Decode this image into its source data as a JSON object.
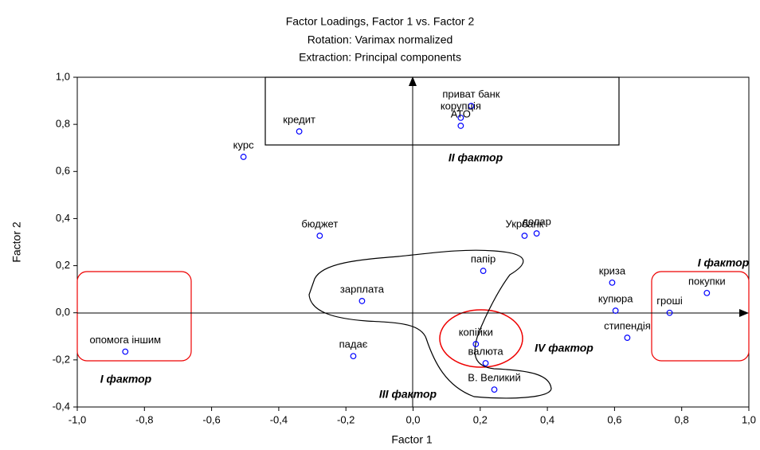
{
  "chart_data": {
    "type": "scatter",
    "title": "Factor Loadings, Factor 1 vs. Factor 2",
    "subtitle": [
      "Rotation: Varimax normalized",
      "Extraction: Principal components"
    ],
    "x_label": "Factor 1",
    "y_label": "Factor 2",
    "color": "#0000ff",
    "xlim": [
      -1,
      1
    ],
    "ylim": [
      -0.4,
      1
    ],
    "xticks": [
      {
        "value": -1,
        "label": "-1,0"
      },
      {
        "value": -0.8,
        "label": "-0,8"
      },
      {
        "value": -0.6,
        "label": "-0,6"
      },
      {
        "value": -0.4,
        "label": "-0,4"
      },
      {
        "value": -0.2,
        "label": "-0,2"
      },
      {
        "value": 0,
        "label": "0,0"
      },
      {
        "value": 0.2,
        "label": "0,2"
      },
      {
        "value": 0.4,
        "label": "0,4"
      },
      {
        "value": 0.6,
        "label": "0,6"
      },
      {
        "value": 0.8,
        "label": "0,8"
      },
      {
        "value": 1,
        "label": "1,0"
      }
    ],
    "yticks": [
      {
        "value": -0.4,
        "label": "-0,4"
      },
      {
        "value": -0.2,
        "label": "-0,2"
      },
      {
        "value": 0,
        "label": "0,0"
      },
      {
        "value": 0.2,
        "label": "0,2"
      },
      {
        "value": 0.4,
        "label": "0,4"
      },
      {
        "value": 0.6,
        "label": "0,6"
      },
      {
        "value": 0.8,
        "label": "0,8"
      },
      {
        "value": 1,
        "label": "1,0"
      }
    ],
    "points": [
      {
        "label": "приват банк",
        "x": 0.173,
        "y": 0.878
      },
      {
        "label": "корупція",
        "x": 0.142,
        "y": 0.828
      },
      {
        "label": "АТО",
        "x": 0.142,
        "y": 0.794
      },
      {
        "label": "кредит",
        "x": -0.339,
        "y": 0.77
      },
      {
        "label": "курс",
        "x": -0.505,
        "y": 0.662
      },
      {
        "label": "бюджет",
        "x": -0.278,
        "y": 0.327
      },
      {
        "label": "Укрбанк",
        "x": 0.332,
        "y": 0.327
      },
      {
        "label": "долар",
        "x": 0.368,
        "y": 0.337
      },
      {
        "label": "папір",
        "x": 0.209,
        "y": 0.178
      },
      {
        "label": "криза",
        "x": 0.593,
        "y": 0.128
      },
      {
        "label": "покупки",
        "x": 0.875,
        "y": 0.084
      },
      {
        "label": "зарплата",
        "x": -0.152,
        "y": 0.05
      },
      {
        "label": "купюра",
        "x": 0.603,
        "y": 0.009
      },
      {
        "label": "гроші",
        "x": 0.764,
        "y": 0
      },
      {
        "label": "стипендія",
        "x": 0.638,
        "y": -0.106
      },
      {
        "label": "копійки",
        "x": 0.187,
        "y": -0.133
      },
      {
        "label": "опомога іншим",
        "x": -0.857,
        "y": -0.165
      },
      {
        "label": "падає",
        "x": -0.178,
        "y": -0.184
      },
      {
        "label": "валюта",
        "x": 0.216,
        "y": -0.214
      },
      {
        "label": "В. Великий",
        "x": 0.242,
        "y": -0.326
      }
    ],
    "annotations": [
      "II фактор",
      "I фактор",
      "I фактор",
      "IV фактор",
      "III фактор"
    ]
  }
}
